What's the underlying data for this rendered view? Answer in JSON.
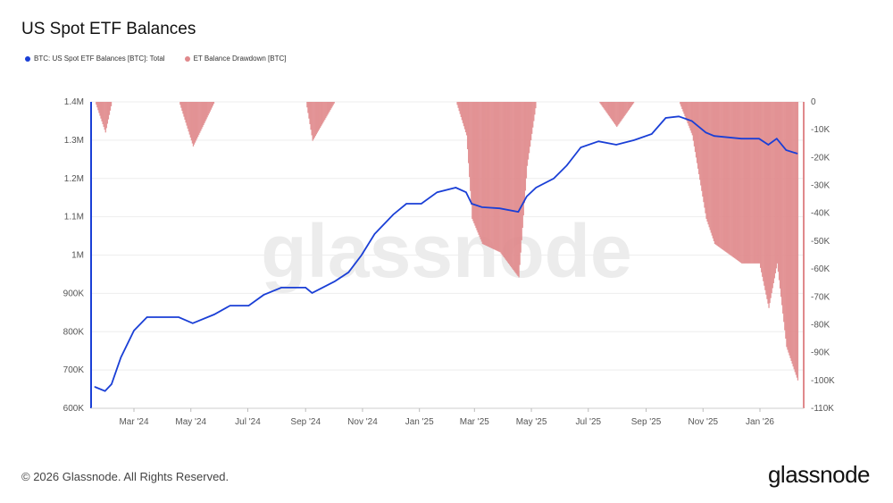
{
  "title": "US Spot ETF Balances",
  "footer": "© 2026 Glassnode. All Rights Reserved.",
  "brand": "glassnode",
  "watermark": "glassnode",
  "chart_data": {
    "type": "line",
    "title": "US Spot ETF Balances",
    "legend_position": "top-left",
    "grid": true,
    "x_ticks": [
      {
        "date": "2024-03-01",
        "label": "Mar '24"
      },
      {
        "date": "2024-05-01",
        "label": "May '24"
      },
      {
        "date": "2024-07-01",
        "label": "Jul '24"
      },
      {
        "date": "2024-09-01",
        "label": "Sep '24"
      },
      {
        "date": "2024-11-01",
        "label": "Nov '24"
      },
      {
        "date": "2025-01-01",
        "label": "Jan '25"
      },
      {
        "date": "2025-03-01",
        "label": "Mar '25"
      },
      {
        "date": "2025-05-01",
        "label": "May '25"
      },
      {
        "date": "2025-07-01",
        "label": "Jul '25"
      },
      {
        "date": "2025-09-01",
        "label": "Sep '25"
      },
      {
        "date": "2025-11-01",
        "label": "Nov '25"
      },
      {
        "date": "2026-01-01",
        "label": "Jan '26"
      }
    ],
    "y_left": {
      "range": [
        600000,
        1400000
      ],
      "ticks": [
        "600K",
        "700K",
        "800K",
        "900K",
        "1M",
        "1.1M",
        "1.2M",
        "1.3M",
        "1.4M"
      ],
      "color": "#1a3fd6"
    },
    "y_right": {
      "range": [
        -110000,
        0
      ],
      "ticks": [
        "-110K",
        "-100K",
        "-90K",
        "-80K",
        "-70K",
        "-60K",
        "-50K",
        "-40K",
        "-30K",
        "-20K",
        "-10K",
        "0"
      ],
      "color": "#e0898c"
    },
    "dates": [
      "2024-01-19",
      "2024-01-30",
      "2024-02-06",
      "2024-02-16",
      "2024-03-01",
      "2024-03-15",
      "2024-03-25",
      "2024-04-18",
      "2024-05-03",
      "2024-05-26",
      "2024-06-12",
      "2024-07-02",
      "2024-07-18",
      "2024-08-06",
      "2024-09-01",
      "2024-09-08",
      "2024-10-02",
      "2024-10-17",
      "2024-10-31",
      "2024-11-14",
      "2024-12-04",
      "2024-12-18",
      "2025-01-03",
      "2025-01-20",
      "2025-02-09",
      "2025-02-20",
      "2025-02-26",
      "2025-03-09",
      "2025-03-28",
      "2025-04-17",
      "2025-04-26",
      "2025-05-06",
      "2025-05-25",
      "2025-06-08",
      "2025-06-23",
      "2025-07-12",
      "2025-07-31",
      "2025-08-19",
      "2025-09-07",
      "2025-09-22",
      "2025-10-06",
      "2025-10-20",
      "2025-11-04",
      "2025-11-13",
      "2025-12-12",
      "2025-12-31",
      "2026-01-10",
      "2026-01-19",
      "2026-01-29",
      "2026-02-10"
    ],
    "series": [
      {
        "name": "BTC: US Spot ETF Balances [BTC]: Total",
        "axis": "left",
        "type": "line",
        "color": "#1a3fd6",
        "values": [
          656000,
          645000,
          663000,
          733000,
          803000,
          838000,
          838000,
          838000,
          822000,
          845000,
          868000,
          868000,
          896000,
          915000,
          915000,
          901000,
          931000,
          955000,
          1000000,
          1055000,
          1106000,
          1134000,
          1134000,
          1164000,
          1176000,
          1164000,
          1134000,
          1125000,
          1122000,
          1113000,
          1153000,
          1176000,
          1200000,
          1234000,
          1281000,
          1297000,
          1288000,
          1300000,
          1316000,
          1358000,
          1362000,
          1350000,
          1320000,
          1311000,
          1304000,
          1304000,
          1288000,
          1304000,
          1274000,
          1265000
        ]
      },
      {
        "name": "ET Balance Drawdown [BTC]",
        "axis": "right",
        "type": "bar",
        "color": "#e0898c",
        "values": [
          0,
          -11000,
          0,
          0,
          0,
          0,
          0,
          0,
          -16000,
          0,
          0,
          0,
          0,
          0,
          0,
          -14000,
          0,
          0,
          0,
          0,
          0,
          0,
          0,
          0,
          0,
          -12000,
          -42000,
          -51000,
          -54000,
          -63000,
          -23000,
          0,
          0,
          0,
          0,
          0,
          -9000,
          0,
          0,
          0,
          0,
          -12000,
          -42000,
          -51000,
          -58000,
          -58000,
          -74000,
          -58000,
          -88000,
          -100000
        ]
      }
    ]
  }
}
